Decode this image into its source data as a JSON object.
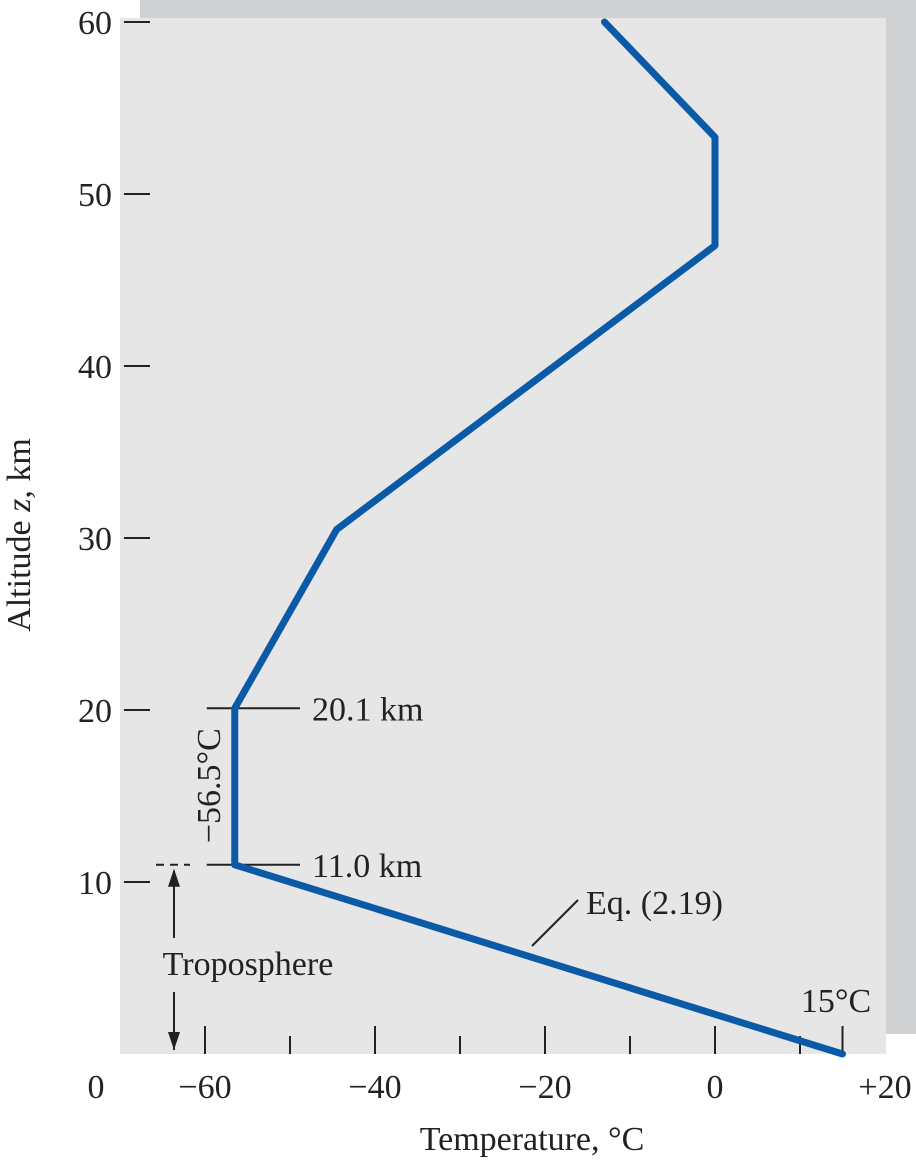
{
  "chart_data": {
    "type": "line",
    "xlabel": "Temperature, °C",
    "ylabel_prefix": "Altitude ",
    "ylabel_italic": "z",
    "ylabel_suffix": ", km",
    "xlim": [
      -70,
      20
    ],
    "ylim": [
      0,
      60
    ],
    "x_tick_labels": [
      {
        "value": -60,
        "label": "−60"
      },
      {
        "value": -40,
        "label": "−40"
      },
      {
        "value": -20,
        "label": "−20"
      },
      {
        "value": 0,
        "label": "0"
      },
      {
        "value": 20,
        "label": "+20"
      }
    ],
    "x_origin_label": "0",
    "x_minor_ticks": [
      -60,
      -50,
      -40,
      -30,
      -20,
      -10,
      0,
      10,
      15
    ],
    "y_ticks": [
      10,
      20,
      30,
      40,
      50,
      60
    ],
    "y_tick_labels": [
      "10",
      "20",
      "30",
      "40",
      "50",
      "60"
    ],
    "series": [
      {
        "color": "#0a5aa8",
        "x": [
          15,
          -56.5,
          -56.5,
          -44.5,
          0,
          0,
          -13
        ],
        "y": [
          0,
          11.0,
          20.1,
          30.5,
          47,
          53.3,
          60
        ]
      }
    ],
    "annotations": {
      "tropopause_top": "20.1 km",
      "tropopause_bottom": "11.0 km",
      "stratosphere_temp": "−56.5°C",
      "equation": "Eq. (2.19)",
      "sea_level_temp": "15°C",
      "troposphere": "Troposphere"
    },
    "grid": false
  }
}
